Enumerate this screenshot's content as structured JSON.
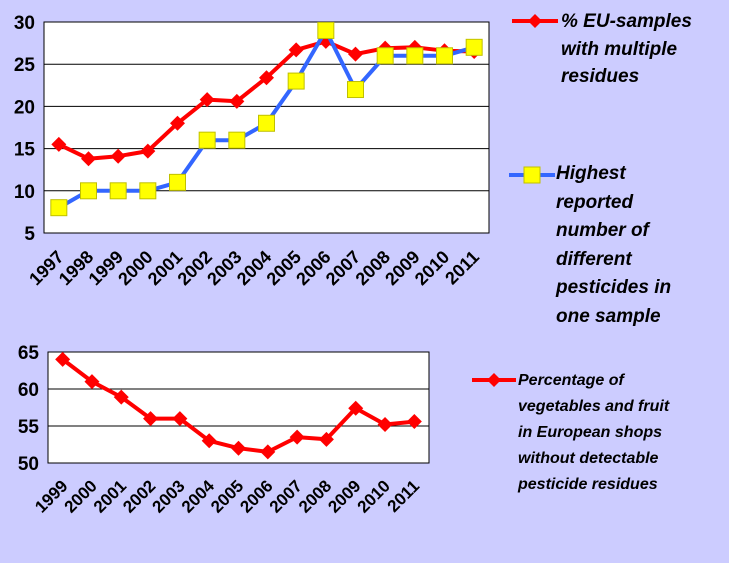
{
  "chart_data": [
    {
      "type": "line",
      "title": "",
      "xlabel": "",
      "ylabel": "",
      "x": [
        "1997",
        "1998",
        "1999",
        "2000",
        "2001",
        "2002",
        "2003",
        "2004",
        "2005",
        "2006",
        "2007",
        "2008",
        "2009",
        "2010",
        "2011"
      ],
      "ylim": [
        5,
        30
      ],
      "yticks": [
        5,
        10,
        15,
        20,
        25,
        30
      ],
      "grid": true,
      "legend": "right",
      "series": [
        {
          "name": "% EU-samples with multiple residues",
          "values": [
            15.5,
            13.8,
            14.1,
            14.7,
            18.0,
            20.8,
            20.6,
            23.4,
            26.7,
            27.7,
            26.2,
            26.9,
            27.0,
            26.6,
            26.5
          ],
          "color": "#ff0000",
          "marker": "diamond"
        },
        {
          "name": "Highest reported number of different pesticides in one sample",
          "values": [
            8,
            10,
            10,
            10,
            11,
            16,
            16,
            18,
            23,
            29,
            22,
            26,
            26,
            26,
            27
          ],
          "color": "#3366ff",
          "marker": "square",
          "marker_color": "#ffff00"
        }
      ]
    },
    {
      "type": "line",
      "title": "",
      "xlabel": "",
      "ylabel": "",
      "x": [
        "1999",
        "2000",
        "2001",
        "2002",
        "2003",
        "2004",
        "2005",
        "2006",
        "2007",
        "2008",
        "2009",
        "2010",
        "2011"
      ],
      "ylim": [
        50,
        65
      ],
      "yticks": [
        50,
        55,
        60,
        65
      ],
      "grid": true,
      "legend": "right",
      "series": [
        {
          "name": "Percentage of vegetables and fruit in European shops without detectable pesticide residues",
          "values": [
            64.0,
            61.0,
            58.9,
            56.0,
            56.0,
            53.0,
            52.0,
            51.5,
            53.5,
            53.2,
            57.4,
            55.2,
            55.6
          ],
          "color": "#ff0000",
          "marker": "diamond"
        }
      ]
    }
  ],
  "legend_text": {
    "chart1_series1": [
      "% EU-samples",
      "with multiple",
      "residues"
    ],
    "chart1_series2": [
      "Highest",
      "reported",
      "number of",
      "different",
      "pesticides in",
      "one sample"
    ],
    "chart2_series1": [
      "Percentage of",
      "vegetables and fruit",
      "in European shops",
      "without detectable",
      "pesticide residues"
    ]
  }
}
